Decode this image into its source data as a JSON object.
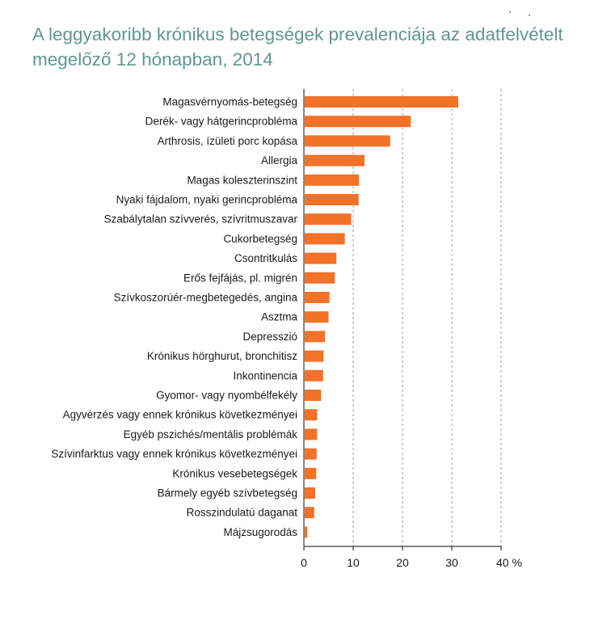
{
  "chart_data": {
    "type": "bar",
    "orientation": "horizontal",
    "title": "A leggyakoribb krónikus betegségek prevalenciája az adatfelvételt megelőző 12 hónapban, 2014",
    "xlabel": "",
    "ylabel": "",
    "x_unit": "%",
    "xlim": [
      0,
      40
    ],
    "xticks": [
      0,
      10,
      20,
      30,
      40
    ],
    "xtick_labels": [
      "0",
      "10",
      "20",
      "30",
      "40 %"
    ],
    "grid": "vertical dashed",
    "legend": "none",
    "bar_color": "#f27227",
    "categories": [
      "Magasvérnyomás-betegség",
      "Derék- vagy hátgerincprobléma",
      "Arthrosis, ízületi porc kopása",
      "Allergia",
      "Magas koleszterinszint",
      "Nyaki fájdalom, nyaki gerincprobléma",
      "Szabálytalan szívverés, szívritmuszavar",
      "Cukorbetegség",
      "Csontritkulás",
      "Erős fejfájás, pl. migrén",
      "Szívkoszorúér-megbetegedés, angina",
      "Asztma",
      "Depresszió",
      "Krónikus hörghurut, bronchitisz",
      "Inkontinencia",
      "Gyomor- vagy nyombélfekély",
      "Agyvérzés vagy ennek krónikus következményei",
      "Egyéb pszichés/mentális problémák",
      "Szívinfarktus vagy ennek krónikus következményei",
      "Krónikus vesebetegségek",
      "Bármely egyéb szívbetegség",
      "Rosszindulatú daganat",
      "Májzsugorodás"
    ],
    "values": [
      31.3,
      21.7,
      17.5,
      12.3,
      11.2,
      11.1,
      9.6,
      8.3,
      6.6,
      6.3,
      5.2,
      5.0,
      4.3,
      4.0,
      3.9,
      3.5,
      2.7,
      2.7,
      2.6,
      2.5,
      2.3,
      2.1,
      0.7
    ]
  }
}
